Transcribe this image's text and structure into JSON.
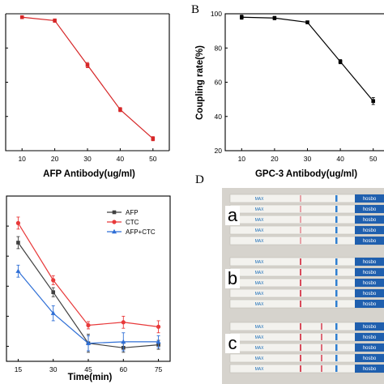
{
  "panels": {
    "B": "B",
    "D": "D"
  },
  "chart_data": [
    {
      "id": "A",
      "type": "line",
      "xlabel": "AFP Antibody(ug/ml)",
      "ylabel": "",
      "x": [
        10,
        20,
        30,
        40,
        50
      ],
      "xticks": [
        "10",
        "20",
        "30",
        "40",
        "50"
      ],
      "ylim": [
        20,
        100
      ],
      "series": [
        {
          "values": [
            98,
            96,
            70,
            44,
            27
          ],
          "errors": [
            0.8,
            1.0,
            1.5,
            1.2,
            1.2
          ],
          "color": "#d62728",
          "marker": "square"
        }
      ]
    },
    {
      "id": "B",
      "type": "line",
      "xlabel": "GPC-3 Antibody(ug/ml)",
      "ylabel": "Coupling rate(%)",
      "x": [
        10,
        20,
        30,
        40,
        50
      ],
      "xticks": [
        "10",
        "20",
        "30",
        "40",
        "50"
      ],
      "yticks": [
        "20",
        "40",
        "60",
        "80",
        "100"
      ],
      "ylim": [
        20,
        100
      ],
      "series": [
        {
          "values": [
            98,
            97.5,
            95,
            72,
            49
          ],
          "errors": [
            1.2,
            1.0,
            0.8,
            1.2,
            2.0
          ],
          "color": "#000000",
          "marker": "square"
        }
      ]
    },
    {
      "id": "C",
      "type": "line",
      "xlabel": "Time(min)",
      "ylabel": "",
      "x": [
        15,
        30,
        45,
        60,
        75
      ],
      "xticks": [
        "15",
        "30",
        "45",
        "60",
        "75"
      ],
      "ylim": [
        3.5,
        9
      ],
      "legend": "top-right",
      "series": [
        {
          "name": "AFP",
          "values": [
            7.45,
            5.8,
            4.1,
            3.95,
            4.05
          ],
          "errors": [
            0.2,
            0.15,
            0.3,
            0.15,
            0.15
          ],
          "color": "#404040",
          "marker": "square"
        },
        {
          "name": "CTC",
          "values": [
            8.1,
            6.2,
            4.7,
            4.8,
            4.65
          ],
          "errors": [
            0.2,
            0.15,
            0.12,
            0.2,
            0.2
          ],
          "color": "#e8393a",
          "marker": "circle"
        },
        {
          "name": "AFP+CTC",
          "values": [
            6.5,
            5.1,
            4.1,
            4.15,
            4.15
          ],
          "errors": [
            0.2,
            0.25,
            0.25,
            0.3,
            0.2
          ],
          "color": "#2f6fd6",
          "marker": "triangle"
        }
      ]
    }
  ],
  "photo": {
    "groups": [
      "a",
      "b",
      "c"
    ],
    "strip_text": "MAX",
    "cap_text": "hosbo"
  }
}
